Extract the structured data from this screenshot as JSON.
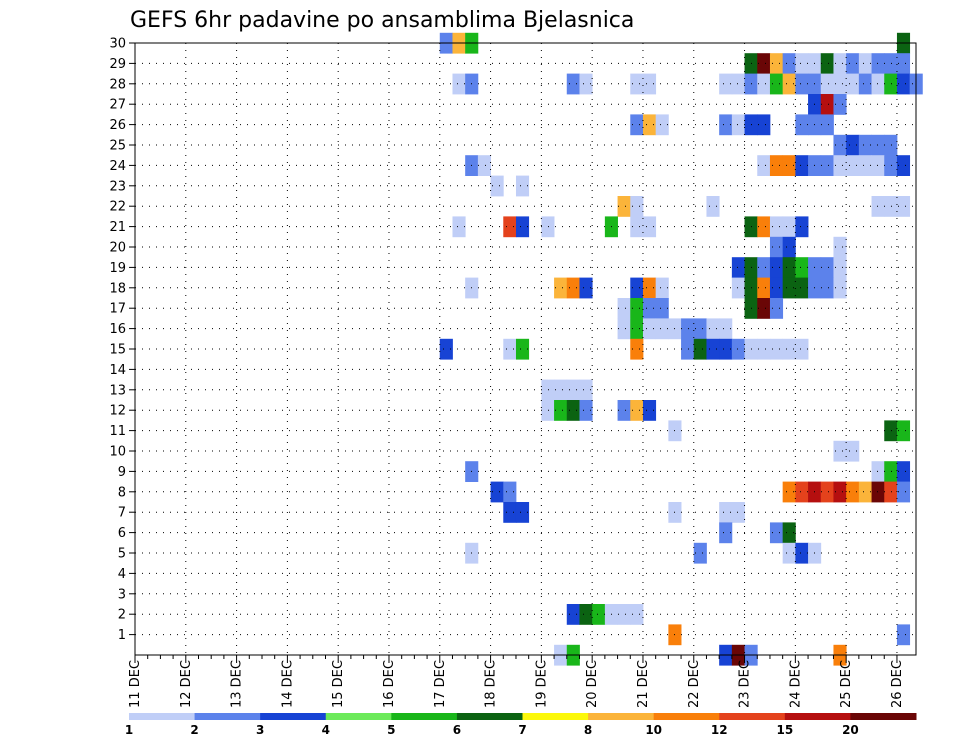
{
  "chart_data": {
    "type": "heatmap",
    "title": "GEFS 6hr padavine po ansamblima Bjelasnica",
    "x_labels": [
      "11 DEC",
      "12 DEC",
      "13 DEC",
      "14 DEC",
      "15 DEC",
      "16 DEC",
      "17 DEC",
      "18 DEC",
      "19 DEC",
      "20 DEC",
      "21 DEC",
      "22 DEC",
      "23 DEC",
      "24 DEC",
      "25 DEC",
      "26 DEC"
    ],
    "y_labels": [
      "1",
      "2",
      "3",
      "4",
      "5",
      "6",
      "7",
      "8",
      "9",
      "10",
      "11",
      "12",
      "13",
      "14",
      "15",
      "16",
      "17",
      "18",
      "19",
      "20",
      "21",
      "22",
      "23",
      "24",
      "25",
      "26",
      "27",
      "28",
      "29",
      "30"
    ],
    "ylim": [
      0,
      30
    ],
    "time_steps_per_day": 4,
    "grid": "dotted",
    "legend": {
      "position": "bottom",
      "labels": [
        "1",
        "2",
        "3",
        "4",
        "5",
        "6",
        "7",
        "8",
        "10",
        "12",
        "15",
        "20"
      ],
      "colors": [
        "#c0cef7",
        "#5c82eb",
        "#1743d4",
        "#6cea5a",
        "#19b61a",
        "#0b6312",
        "#fcf80a",
        "#fbb43a",
        "#f97f0a",
        "#e4421c",
        "#b50f0f",
        "#6a0606"
      ]
    },
    "cells": [
      [
        30,
        24,
        2
      ],
      [
        30,
        25,
        8
      ],
      [
        30,
        26,
        5
      ],
      [
        30,
        60,
        6
      ],
      [
        29,
        48,
        6
      ],
      [
        29,
        49,
        12
      ],
      [
        29,
        50,
        8
      ],
      [
        29,
        51,
        2
      ],
      [
        29,
        52,
        1
      ],
      [
        29,
        53,
        1
      ],
      [
        29,
        54,
        6
      ],
      [
        29,
        55,
        1
      ],
      [
        29,
        56,
        2
      ],
      [
        29,
        57,
        1
      ],
      [
        29,
        58,
        2
      ],
      [
        29,
        59,
        2
      ],
      [
        29,
        60,
        2
      ],
      [
        28,
        25,
        1
      ],
      [
        28,
        26,
        2
      ],
      [
        28,
        34,
        2
      ],
      [
        28,
        35,
        1
      ],
      [
        28,
        39,
        1
      ],
      [
        28,
        40,
        1
      ],
      [
        28,
        46,
        1
      ],
      [
        28,
        47,
        1
      ],
      [
        28,
        48,
        2
      ],
      [
        28,
        49,
        1
      ],
      [
        28,
        50,
        5
      ],
      [
        28,
        51,
        8
      ],
      [
        28,
        52,
        2
      ],
      [
        28,
        53,
        2
      ],
      [
        28,
        54,
        1
      ],
      [
        28,
        55,
        1
      ],
      [
        28,
        56,
        1
      ],
      [
        28,
        57,
        2
      ],
      [
        28,
        58,
        1
      ],
      [
        28,
        59,
        5
      ],
      [
        28,
        60,
        3
      ],
      [
        28,
        61,
        2
      ],
      [
        27,
        53,
        3
      ],
      [
        27,
        54,
        11
      ],
      [
        27,
        55,
        2
      ],
      [
        26,
        39,
        2
      ],
      [
        26,
        40,
        8
      ],
      [
        26,
        41,
        1
      ],
      [
        26,
        46,
        2
      ],
      [
        26,
        47,
        1
      ],
      [
        26,
        48,
        3
      ],
      [
        26,
        49,
        3
      ],
      [
        26,
        52,
        2
      ],
      [
        26,
        53,
        2
      ],
      [
        26,
        54,
        2
      ],
      [
        25,
        55,
        2
      ],
      [
        25,
        56,
        3
      ],
      [
        25,
        57,
        2
      ],
      [
        25,
        58,
        2
      ],
      [
        25,
        59,
        2
      ],
      [
        24,
        26,
        2
      ],
      [
        24,
        27,
        1
      ],
      [
        24,
        49,
        1
      ],
      [
        24,
        50,
        9
      ],
      [
        24,
        51,
        9
      ],
      [
        24,
        52,
        3
      ],
      [
        24,
        53,
        2
      ],
      [
        24,
        54,
        2
      ],
      [
        24,
        55,
        1
      ],
      [
        24,
        56,
        1
      ],
      [
        24,
        57,
        1
      ],
      [
        24,
        58,
        1
      ],
      [
        24,
        59,
        2
      ],
      [
        24,
        60,
        3
      ],
      [
        23,
        28,
        1
      ],
      [
        23,
        30,
        1
      ],
      [
        22,
        38,
        8
      ],
      [
        22,
        39,
        1
      ],
      [
        22,
        45,
        1
      ],
      [
        22,
        58,
        1
      ],
      [
        22,
        59,
        1
      ],
      [
        22,
        60,
        1
      ],
      [
        21,
        25,
        1
      ],
      [
        21,
        29,
        10
      ],
      [
        21,
        30,
        3
      ],
      [
        21,
        32,
        1
      ],
      [
        21,
        37,
        5
      ],
      [
        21,
        39,
        1
      ],
      [
        21,
        40,
        1
      ],
      [
        21,
        48,
        6
      ],
      [
        21,
        49,
        9
      ],
      [
        21,
        50,
        1
      ],
      [
        21,
        51,
        1
      ],
      [
        21,
        52,
        3
      ],
      [
        20,
        50,
        2
      ],
      [
        20,
        51,
        3
      ],
      [
        20,
        55,
        1
      ],
      [
        19,
        47,
        3
      ],
      [
        19,
        48,
        6
      ],
      [
        19,
        49,
        2
      ],
      [
        19,
        50,
        3
      ],
      [
        19,
        51,
        6
      ],
      [
        19,
        52,
        5
      ],
      [
        19,
        53,
        2
      ],
      [
        19,
        54,
        2
      ],
      [
        19,
        55,
        1
      ],
      [
        18,
        26,
        1
      ],
      [
        18,
        33,
        8
      ],
      [
        18,
        34,
        9
      ],
      [
        18,
        35,
        3
      ],
      [
        18,
        39,
        3
      ],
      [
        18,
        40,
        9
      ],
      [
        18,
        41,
        1
      ],
      [
        18,
        47,
        1
      ],
      [
        18,
        48,
        6
      ],
      [
        18,
        49,
        9
      ],
      [
        18,
        50,
        3
      ],
      [
        18,
        51,
        6
      ],
      [
        18,
        52,
        6
      ],
      [
        18,
        53,
        2
      ],
      [
        18,
        54,
        2
      ],
      [
        18,
        55,
        1
      ],
      [
        17,
        38,
        1
      ],
      [
        17,
        39,
        5
      ],
      [
        17,
        40,
        2
      ],
      [
        17,
        41,
        2
      ],
      [
        17,
        48,
        6
      ],
      [
        17,
        49,
        12
      ],
      [
        17,
        50,
        2
      ],
      [
        16,
        38,
        1
      ],
      [
        16,
        39,
        5
      ],
      [
        16,
        40,
        1
      ],
      [
        16,
        41,
        1
      ],
      [
        16,
        42,
        1
      ],
      [
        16,
        43,
        2
      ],
      [
        16,
        44,
        2
      ],
      [
        16,
        45,
        1
      ],
      [
        16,
        46,
        1
      ],
      [
        15,
        24,
        3
      ],
      [
        15,
        29,
        1
      ],
      [
        15,
        30,
        5
      ],
      [
        15,
        39,
        9
      ],
      [
        15,
        43,
        2
      ],
      [
        15,
        44,
        6
      ],
      [
        15,
        45,
        3
      ],
      [
        15,
        46,
        3
      ],
      [
        15,
        47,
        2
      ],
      [
        15,
        48,
        1
      ],
      [
        15,
        49,
        1
      ],
      [
        15,
        50,
        1
      ],
      [
        15,
        51,
        1
      ],
      [
        15,
        52,
        1
      ],
      [
        13,
        32,
        1
      ],
      [
        13,
        33,
        1
      ],
      [
        13,
        34,
        1
      ],
      [
        13,
        35,
        1
      ],
      [
        12,
        32,
        1
      ],
      [
        12,
        33,
        5
      ],
      [
        12,
        34,
        6
      ],
      [
        12,
        35,
        2
      ],
      [
        12,
        38,
        2
      ],
      [
        12,
        39,
        8
      ],
      [
        12,
        40,
        3
      ],
      [
        11,
        42,
        1
      ],
      [
        11,
        59,
        6
      ],
      [
        11,
        60,
        5
      ],
      [
        10,
        55,
        1
      ],
      [
        10,
        56,
        1
      ],
      [
        9,
        26,
        2
      ],
      [
        9,
        58,
        1
      ],
      [
        9,
        59,
        5
      ],
      [
        9,
        60,
        3
      ],
      [
        8,
        28,
        3
      ],
      [
        8,
        29,
        2
      ],
      [
        8,
        51,
        9
      ],
      [
        8,
        52,
        10
      ],
      [
        8,
        53,
        11
      ],
      [
        8,
        54,
        10
      ],
      [
        8,
        55,
        11
      ],
      [
        8,
        56,
        9
      ],
      [
        8,
        57,
        8
      ],
      [
        8,
        58,
        12
      ],
      [
        8,
        59,
        10
      ],
      [
        8,
        60,
        2
      ],
      [
        7,
        29,
        3
      ],
      [
        7,
        30,
        3
      ],
      [
        7,
        42,
        1
      ],
      [
        7,
        46,
        1
      ],
      [
        7,
        47,
        1
      ],
      [
        6,
        46,
        2
      ],
      [
        6,
        50,
        2
      ],
      [
        6,
        51,
        6
      ],
      [
        5,
        26,
        1
      ],
      [
        5,
        44,
        2
      ],
      [
        5,
        51,
        1
      ],
      [
        5,
        52,
        3
      ],
      [
        5,
        53,
        1
      ],
      [
        2,
        34,
        3
      ],
      [
        2,
        35,
        6
      ],
      [
        2,
        36,
        5
      ],
      [
        2,
        37,
        1
      ],
      [
        2,
        38,
        1
      ],
      [
        2,
        39,
        1
      ],
      [
        1,
        42,
        9
      ],
      [
        1,
        60,
        2
      ],
      [
        0,
        33,
        1
      ],
      [
        0,
        34,
        5
      ],
      [
        0,
        46,
        3
      ],
      [
        0,
        47,
        12
      ],
      [
        0,
        48,
        2
      ],
      [
        0,
        55,
        9
      ]
    ]
  }
}
